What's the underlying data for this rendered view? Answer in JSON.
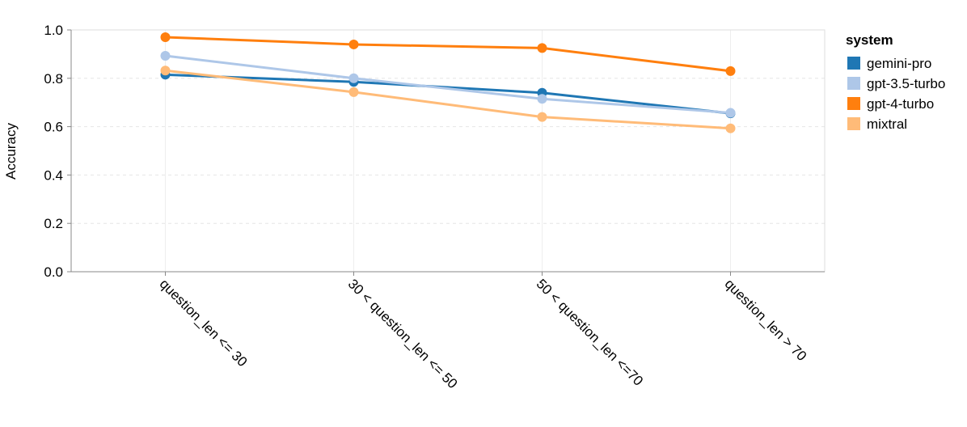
{
  "chart_data": {
    "type": "line",
    "ylabel": "Accuracy",
    "xlabel": "",
    "ylim": [
      0,
      1
    ],
    "yticks": [
      "0.0",
      "0.2",
      "0.4",
      "0.6",
      "0.8",
      "1.0"
    ],
    "grid": true,
    "legend_position": "top-right",
    "legend_title": "system",
    "categories": [
      "question_len <= 30",
      "30 < question_len <= 50",
      "50 < question_len <=70",
      "question_len > 70"
    ],
    "series": [
      {
        "name": "gemini-pro",
        "color": "#1f77b4",
        "values": [
          0.815,
          0.785,
          0.74,
          0.655
        ]
      },
      {
        "name": "gpt-3.5-turbo",
        "color": "#aec7e8",
        "values": [
          0.893,
          0.8,
          0.715,
          0.657
        ]
      },
      {
        "name": "gpt-4-turbo",
        "color": "#ff7f0e",
        "values": [
          0.97,
          0.94,
          0.925,
          0.83
        ]
      },
      {
        "name": "mixtral",
        "color": "#ffbb78",
        "values": [
          0.832,
          0.743,
          0.64,
          0.593
        ]
      }
    ]
  }
}
